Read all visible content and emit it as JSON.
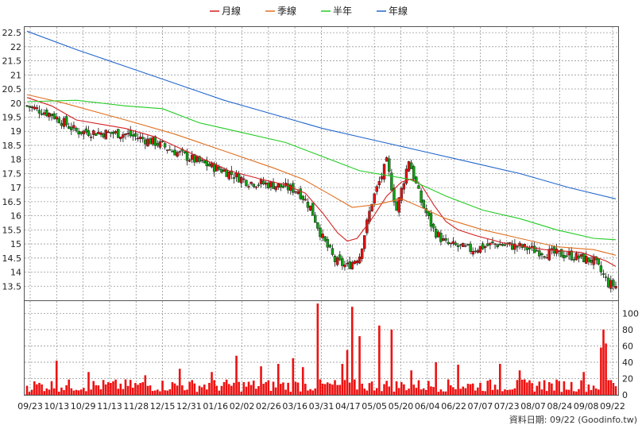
{
  "chart_data": {
    "type": "candlestick",
    "legend": [
      {
        "name": "月線",
        "color": "#d42020"
      },
      {
        "name": "季線",
        "color": "#e07020"
      },
      {
        "name": "半年",
        "color": "#22cc22"
      },
      {
        "name": "年線",
        "color": "#2266cc"
      }
    ],
    "legend_position": "top-center",
    "price_axis": {
      "ylim": [
        13.0,
        22.7
      ],
      "ticks": [
        "22.5",
        "22",
        "21.5",
        "21",
        "20.5",
        "20",
        "19.5",
        "19",
        "18.5",
        "18",
        "17.5",
        "17",
        "16.5",
        "16",
        "15.5",
        "15",
        "14.5",
        "14",
        "13.5"
      ]
    },
    "volume_axis": {
      "ylim": [
        0,
        115
      ],
      "ticks": [
        "100",
        "80",
        "60",
        "40",
        "20",
        "0"
      ]
    },
    "x_axis": {
      "ticks": [
        "09/23",
        "10/13",
        "10/29",
        "11/13",
        "11/28",
        "12/15",
        "12/31",
        "01/16",
        "02/02",
        "02/26",
        "03/16",
        "03/31",
        "04/17",
        "05/05",
        "05/20",
        "06/04",
        "06/22",
        "07/07",
        "07/23",
        "08/07",
        "08/24",
        "09/08",
        "09/22"
      ]
    },
    "grid": true,
    "n_days": 240,
    "close_anchors": [
      [
        0,
        19.9
      ],
      [
        10,
        19.6
      ],
      [
        20,
        19.0
      ],
      [
        40,
        18.9
      ],
      [
        52,
        18.6
      ],
      [
        62,
        18.2
      ],
      [
        70,
        17.9
      ],
      [
        80,
        17.6
      ],
      [
        90,
        17.2
      ],
      [
        100,
        17.1
      ],
      [
        110,
        16.9
      ],
      [
        115,
        16.3
      ],
      [
        120,
        15.2
      ],
      [
        125,
        14.4
      ],
      [
        130,
        14.2
      ],
      [
        135,
        14.6
      ],
      [
        140,
        16.5
      ],
      [
        146,
        17.9
      ],
      [
        150,
        16.2
      ],
      [
        155,
        18.0
      ],
      [
        160,
        16.5
      ],
      [
        165,
        15.5
      ],
      [
        170,
        15.0
      ],
      [
        180,
        14.8
      ],
      [
        190,
        15.0
      ],
      [
        200,
        14.9
      ],
      [
        210,
        14.7
      ],
      [
        220,
        14.6
      ],
      [
        230,
        14.4
      ],
      [
        236,
        13.6
      ],
      [
        239,
        13.5
      ]
    ],
    "ma": {
      "month": [
        [
          0,
          20.2
        ],
        [
          10,
          19.9
        ],
        [
          20,
          19.4
        ],
        [
          40,
          19.1
        ],
        [
          52,
          18.8
        ],
        [
          62,
          18.4
        ],
        [
          72,
          18.0
        ],
        [
          82,
          17.6
        ],
        [
          95,
          17.3
        ],
        [
          105,
          17.1
        ],
        [
          113,
          16.8
        ],
        [
          120,
          16.1
        ],
        [
          126,
          15.4
        ],
        [
          130,
          15.1
        ],
        [
          134,
          15.2
        ],
        [
          140,
          15.9
        ],
        [
          146,
          16.7
        ],
        [
          152,
          17.2
        ],
        [
          156,
          17.3
        ],
        [
          160,
          17.1
        ],
        [
          165,
          16.4
        ],
        [
          170,
          15.8
        ],
        [
          175,
          15.5
        ],
        [
          182,
          15.3
        ],
        [
          195,
          15.0
        ],
        [
          210,
          14.8
        ],
        [
          225,
          14.7
        ],
        [
          235,
          14.4
        ],
        [
          239,
          14.2
        ]
      ],
      "quarter": [
        [
          0,
          20.3
        ],
        [
          15,
          20.0
        ],
        [
          40,
          19.4
        ],
        [
          60,
          18.9
        ],
        [
          80,
          18.3
        ],
        [
          100,
          17.7
        ],
        [
          112,
          17.3
        ],
        [
          122,
          16.8
        ],
        [
          132,
          16.3
        ],
        [
          142,
          16.4
        ],
        [
          152,
          16.6
        ],
        [
          160,
          16.3
        ],
        [
          170,
          15.9
        ],
        [
          185,
          15.5
        ],
        [
          200,
          15.2
        ],
        [
          215,
          14.9
        ],
        [
          230,
          14.8
        ],
        [
          239,
          14.6
        ]
      ],
      "half": [
        [
          0,
          20.05
        ],
        [
          20,
          20.1
        ],
        [
          40,
          19.9
        ],
        [
          55,
          19.8
        ],
        [
          70,
          19.3
        ],
        [
          85,
          19.0
        ],
        [
          105,
          18.6
        ],
        [
          120,
          18.1
        ],
        [
          135,
          17.6
        ],
        [
          155,
          17.3
        ],
        [
          170,
          16.7
        ],
        [
          185,
          16.2
        ],
        [
          200,
          15.9
        ],
        [
          215,
          15.5
        ],
        [
          230,
          15.2
        ],
        [
          239,
          15.15
        ]
      ],
      "year": [
        [
          0,
          22.55
        ],
        [
          20,
          21.9
        ],
        [
          40,
          21.3
        ],
        [
          60,
          20.7
        ],
        [
          80,
          20.1
        ],
        [
          100,
          19.6
        ],
        [
          120,
          19.1
        ],
        [
          140,
          18.7
        ],
        [
          160,
          18.3
        ],
        [
          180,
          17.9
        ],
        [
          200,
          17.5
        ],
        [
          220,
          17.0
        ],
        [
          239,
          16.6
        ]
      ]
    },
    "volume_baseline": 12,
    "volume_spikes": [
      [
        12,
        42
      ],
      [
        25,
        28
      ],
      [
        48,
        24
      ],
      [
        62,
        32
      ],
      [
        75,
        28
      ],
      [
        85,
        48
      ],
      [
        95,
        35
      ],
      [
        102,
        38
      ],
      [
        108,
        45
      ],
      [
        112,
        34
      ],
      [
        118,
        112
      ],
      [
        128,
        38
      ],
      [
        130,
        55
      ],
      [
        132,
        108
      ],
      [
        135,
        72
      ],
      [
        143,
        85
      ],
      [
        148,
        80
      ],
      [
        156,
        30
      ],
      [
        166,
        40
      ],
      [
        175,
        37
      ],
      [
        192,
        38
      ],
      [
        200,
        30
      ],
      [
        210,
        18
      ],
      [
        226,
        28
      ],
      [
        233,
        58
      ],
      [
        234,
        80
      ],
      [
        235,
        63
      ],
      [
        236,
        18
      ]
    ],
    "source_note": "資料日期: 09/22 (Goodinfo.tw)"
  }
}
